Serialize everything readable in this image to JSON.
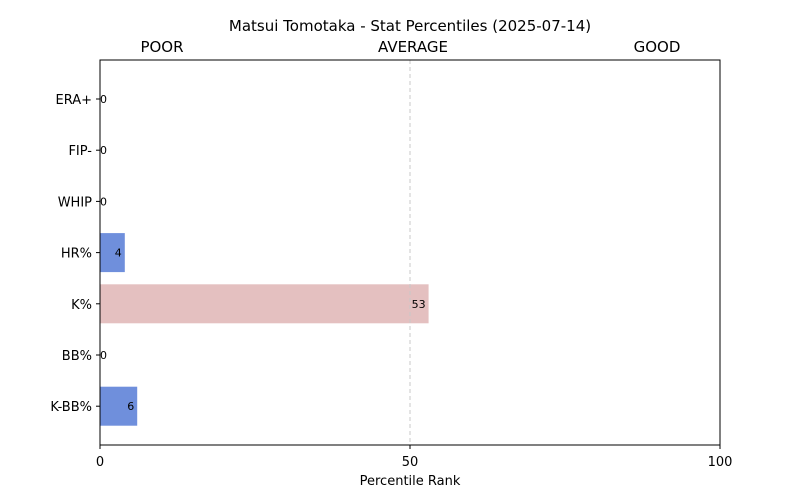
{
  "chart_data": {
    "type": "bar",
    "orientation": "horizontal",
    "title": "Matsui Tomotaka - Stat Percentiles (2025-07-14)",
    "xlabel": "Percentile Rank",
    "ylabel": "",
    "xlim": [
      0,
      100
    ],
    "xticks": [
      "0",
      "50",
      "100"
    ],
    "zone_labels": [
      "POOR",
      "AVERAGE",
      "GOOD"
    ],
    "reference_line": 50,
    "grid": false,
    "categories": [
      "ERA+",
      "FIP-",
      "WHIP",
      "HR%",
      "K%",
      "BB%",
      "K-BB%"
    ],
    "values": [
      0,
      0,
      0,
      4,
      53,
      0,
      6
    ],
    "bar_colors": [
      "#6f8fdc",
      "#6f8fdc",
      "#6f8fdc",
      "#6f8fdc",
      "#e4c0c0",
      "#6f8fdc",
      "#6f8fdc"
    ]
  }
}
